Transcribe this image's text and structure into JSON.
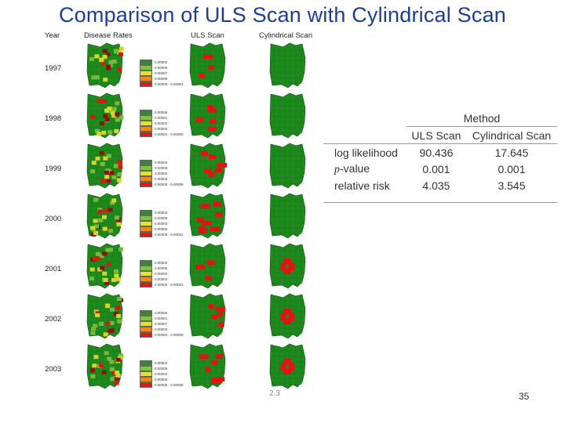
{
  "slide": {
    "title": "Comparison of ULS Scan with Cylindrical Scan",
    "footer_code": "2.3",
    "page_number": "35"
  },
  "columns": {
    "year": "Year",
    "disease_rates": "Disease Rates",
    "uls_scan": "ULS Scan",
    "cylindrical_scan": "Cylindrical Scan"
  },
  "years": [
    {
      "label": "1997",
      "legend": [
        "0.00003",
        "0.00006",
        "0.00007",
        "0.00008",
        "0.00008 - 0.00051"
      ]
    },
    {
      "label": "1998",
      "legend": [
        "0.00006",
        "0.00001",
        "0.00002",
        "0.00003",
        "0.00004 - 0.00005"
      ]
    },
    {
      "label": "1999",
      "legend": [
        "0.00003",
        "0.00005",
        "0.00002",
        "0.00003",
        "0.00005 - 0.00008"
      ]
    },
    {
      "label": "2000",
      "legend": [
        "0.00003",
        "0.00005",
        "0.00003",
        "0.00006",
        "0.00008 - 0.00001"
      ]
    },
    {
      "label": "2001",
      "legend": [
        "0.00003",
        "0.00005",
        "0.00002",
        "0.00003",
        "0.00005 - 0.00001"
      ]
    },
    {
      "label": "2002",
      "legend": [
        "0.00006",
        "0.00001",
        "0.00007",
        "0.00003",
        "0.00004 - 0.00009"
      ]
    },
    {
      "label": "2003",
      "legend": [
        "0.00003",
        "0.00005",
        "0.00002",
        "0.00003",
        "0.00005 - 0.00008"
      ]
    }
  ],
  "legend_colors": [
    "#2e8b2e",
    "#7cc43a",
    "#e6e620",
    "#f08a1a",
    "#e01818"
  ],
  "map_colors": {
    "green": "#1e8a1e",
    "light_green": "#79b93a",
    "yellow": "#d8d428",
    "red": "#e01414",
    "dark_red": "#8e1010"
  },
  "results_table": {
    "method_header": "Method",
    "column_headers": [
      "ULS Scan",
      "Cylindrical Scan"
    ],
    "rows": [
      {
        "label": "log likelihood",
        "uls": "90.436",
        "cyl": "17.645"
      },
      {
        "label": "p-value",
        "uls": "0.001",
        "cyl": "0.001"
      },
      {
        "label": "relative risk",
        "uls": "4.035",
        "cyl": "3.545"
      }
    ]
  }
}
